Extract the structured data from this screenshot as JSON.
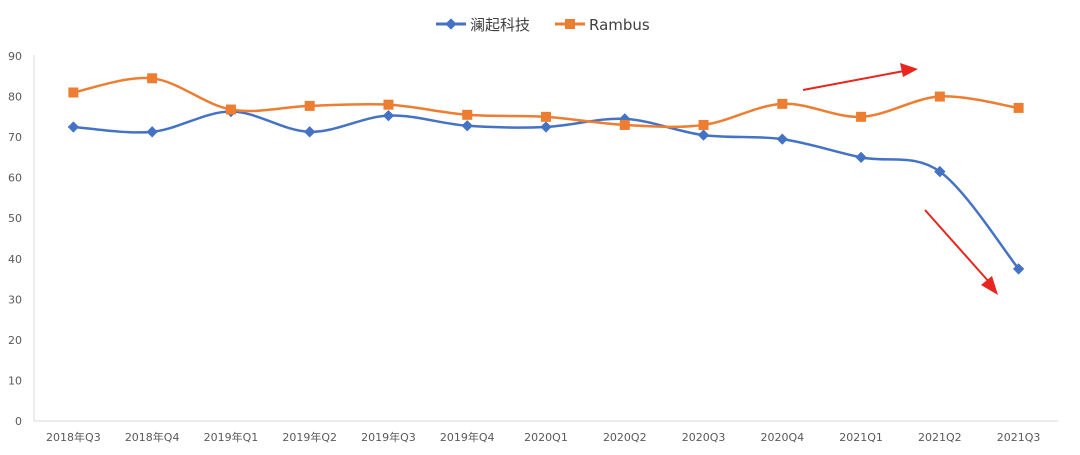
{
  "chart_data": {
    "type": "line",
    "categories": [
      "2018年Q3",
      "2018年Q4",
      "2019年Q1",
      "2019年Q2",
      "2019年Q3",
      "2019年Q4",
      "2020Q1",
      "2020Q2",
      "2020Q3",
      "2020Q4",
      "2021Q1",
      "2021Q2",
      "2021Q3"
    ],
    "series": [
      {
        "name": "澜起科技",
        "color": "#4472C4",
        "marker": "diamond",
        "values": [
          72.5,
          71.3,
          76.3,
          71.3,
          75.3,
          72.8,
          72.5,
          74.5,
          70.5,
          69.5,
          65.0,
          61.5,
          37.5
        ]
      },
      {
        "name": "Rambus",
        "color": "#ED7D31",
        "marker": "square",
        "values": [
          81.0,
          84.5,
          76.8,
          77.7,
          78.0,
          75.5,
          75.0,
          73.0,
          73.0,
          78.2,
          75.0,
          80.0,
          77.2
        ]
      }
    ],
    "ylim": [
      0,
      90
    ],
    "yticks": [
      0,
      10,
      20,
      30,
      40,
      50,
      60,
      70,
      80,
      90
    ],
    "legend": "top-center",
    "grid": false,
    "annotations": [
      {
        "type": "arrow",
        "color": "#E8251E",
        "direction": "up-right"
      },
      {
        "type": "arrow",
        "color": "#E8251E",
        "direction": "down-right"
      }
    ]
  }
}
